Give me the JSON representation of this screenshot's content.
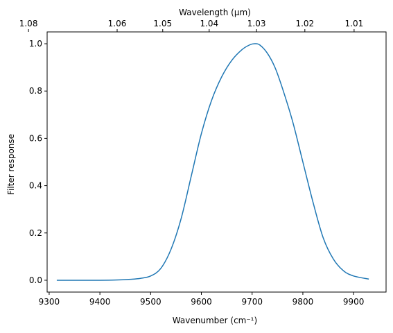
{
  "chart_data": {
    "type": "line",
    "xlabel": "Wavenumber (cm⁻¹)",
    "ylabel": "Filter response",
    "top_xlabel": "Wavelength (μm)",
    "xlim": [
      9296,
      9964
    ],
    "ylim": [
      -0.05,
      1.05
    ],
    "x_ticks": [
      9300,
      9400,
      9500,
      9600,
      9700,
      9800,
      9900
    ],
    "y_ticks": [
      0.0,
      0.2,
      0.4,
      0.6,
      0.8,
      1.0
    ],
    "y_tick_labels": [
      "0.0",
      "0.2",
      "0.4",
      "0.6",
      "0.8",
      "1.0"
    ],
    "top_ticks_um": [
      1.08,
      1.06,
      1.05,
      1.04,
      1.03,
      1.02,
      1.01
    ],
    "grid": false,
    "series_color": "#1f77b4",
    "series": [
      {
        "x": [
          9315,
          9350,
          9400,
          9430,
          9460,
          9480,
          9500,
          9520,
          9540,
          9560,
          9580,
          9600,
          9620,
          9640,
          9660,
          9680,
          9695,
          9705,
          9715,
          9730,
          9745,
          9760,
          9780,
          9800,
          9820,
          9840,
          9860,
          9880,
          9900,
          9930
        ],
        "y": [
          0.0,
          0.0,
          0.0,
          0.001,
          0.004,
          0.008,
          0.018,
          0.05,
          0.13,
          0.26,
          0.44,
          0.62,
          0.76,
          0.86,
          0.93,
          0.975,
          0.995,
          1.0,
          0.995,
          0.96,
          0.9,
          0.81,
          0.67,
          0.5,
          0.33,
          0.18,
          0.09,
          0.04,
          0.018,
          0.005
        ]
      }
    ]
  }
}
